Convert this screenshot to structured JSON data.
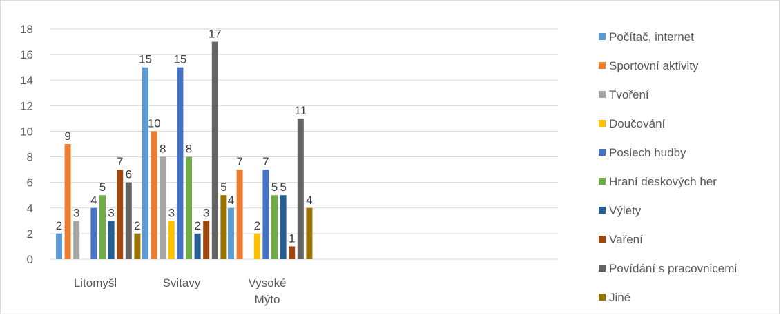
{
  "chart_data": {
    "type": "bar",
    "title": "",
    "xlabel": "",
    "ylabel": "",
    "ylim": [
      0,
      18
    ],
    "ytick_step": 2,
    "yticks": [
      "0",
      "2",
      "4",
      "6",
      "8",
      "10",
      "12",
      "14",
      "16",
      "18"
    ],
    "grid": true,
    "legend_position": "right",
    "categories": [
      [
        "Litomyšl"
      ],
      [
        "Svitavy"
      ],
      [
        "Vysoké",
        "Mýto"
      ]
    ],
    "series": [
      {
        "name": "Počítač, internet",
        "color": "#5b9bd5",
        "values": [
          2,
          15,
          4
        ]
      },
      {
        "name": "Sportovní aktivity",
        "color": "#ed7d31",
        "values": [
          9,
          10,
          7
        ]
      },
      {
        "name": "Tvoření",
        "color": "#a5a5a5",
        "values": [
          3,
          8,
          0
        ]
      },
      {
        "name": "Doučování",
        "color": "#ffc000",
        "values": [
          0,
          3,
          2
        ]
      },
      {
        "name": "Poslech hudby",
        "color": "#4472c4",
        "values": [
          4,
          15,
          7
        ]
      },
      {
        "name": "Hraní deskových her",
        "color": "#70ad47",
        "values": [
          5,
          8,
          5
        ]
      },
      {
        "name": "Výlety",
        "color": "#255e91",
        "values": [
          3,
          2,
          5
        ]
      },
      {
        "name": "Vaření",
        "color": "#9e480e",
        "values": [
          7,
          3,
          1
        ]
      },
      {
        "name": "Povídání s pracovnicemi",
        "color": "#636363",
        "values": [
          6,
          17,
          11
        ]
      },
      {
        "name": "Jiné",
        "color": "#997300",
        "values": [
          2,
          5,
          4
        ]
      }
    ]
  }
}
